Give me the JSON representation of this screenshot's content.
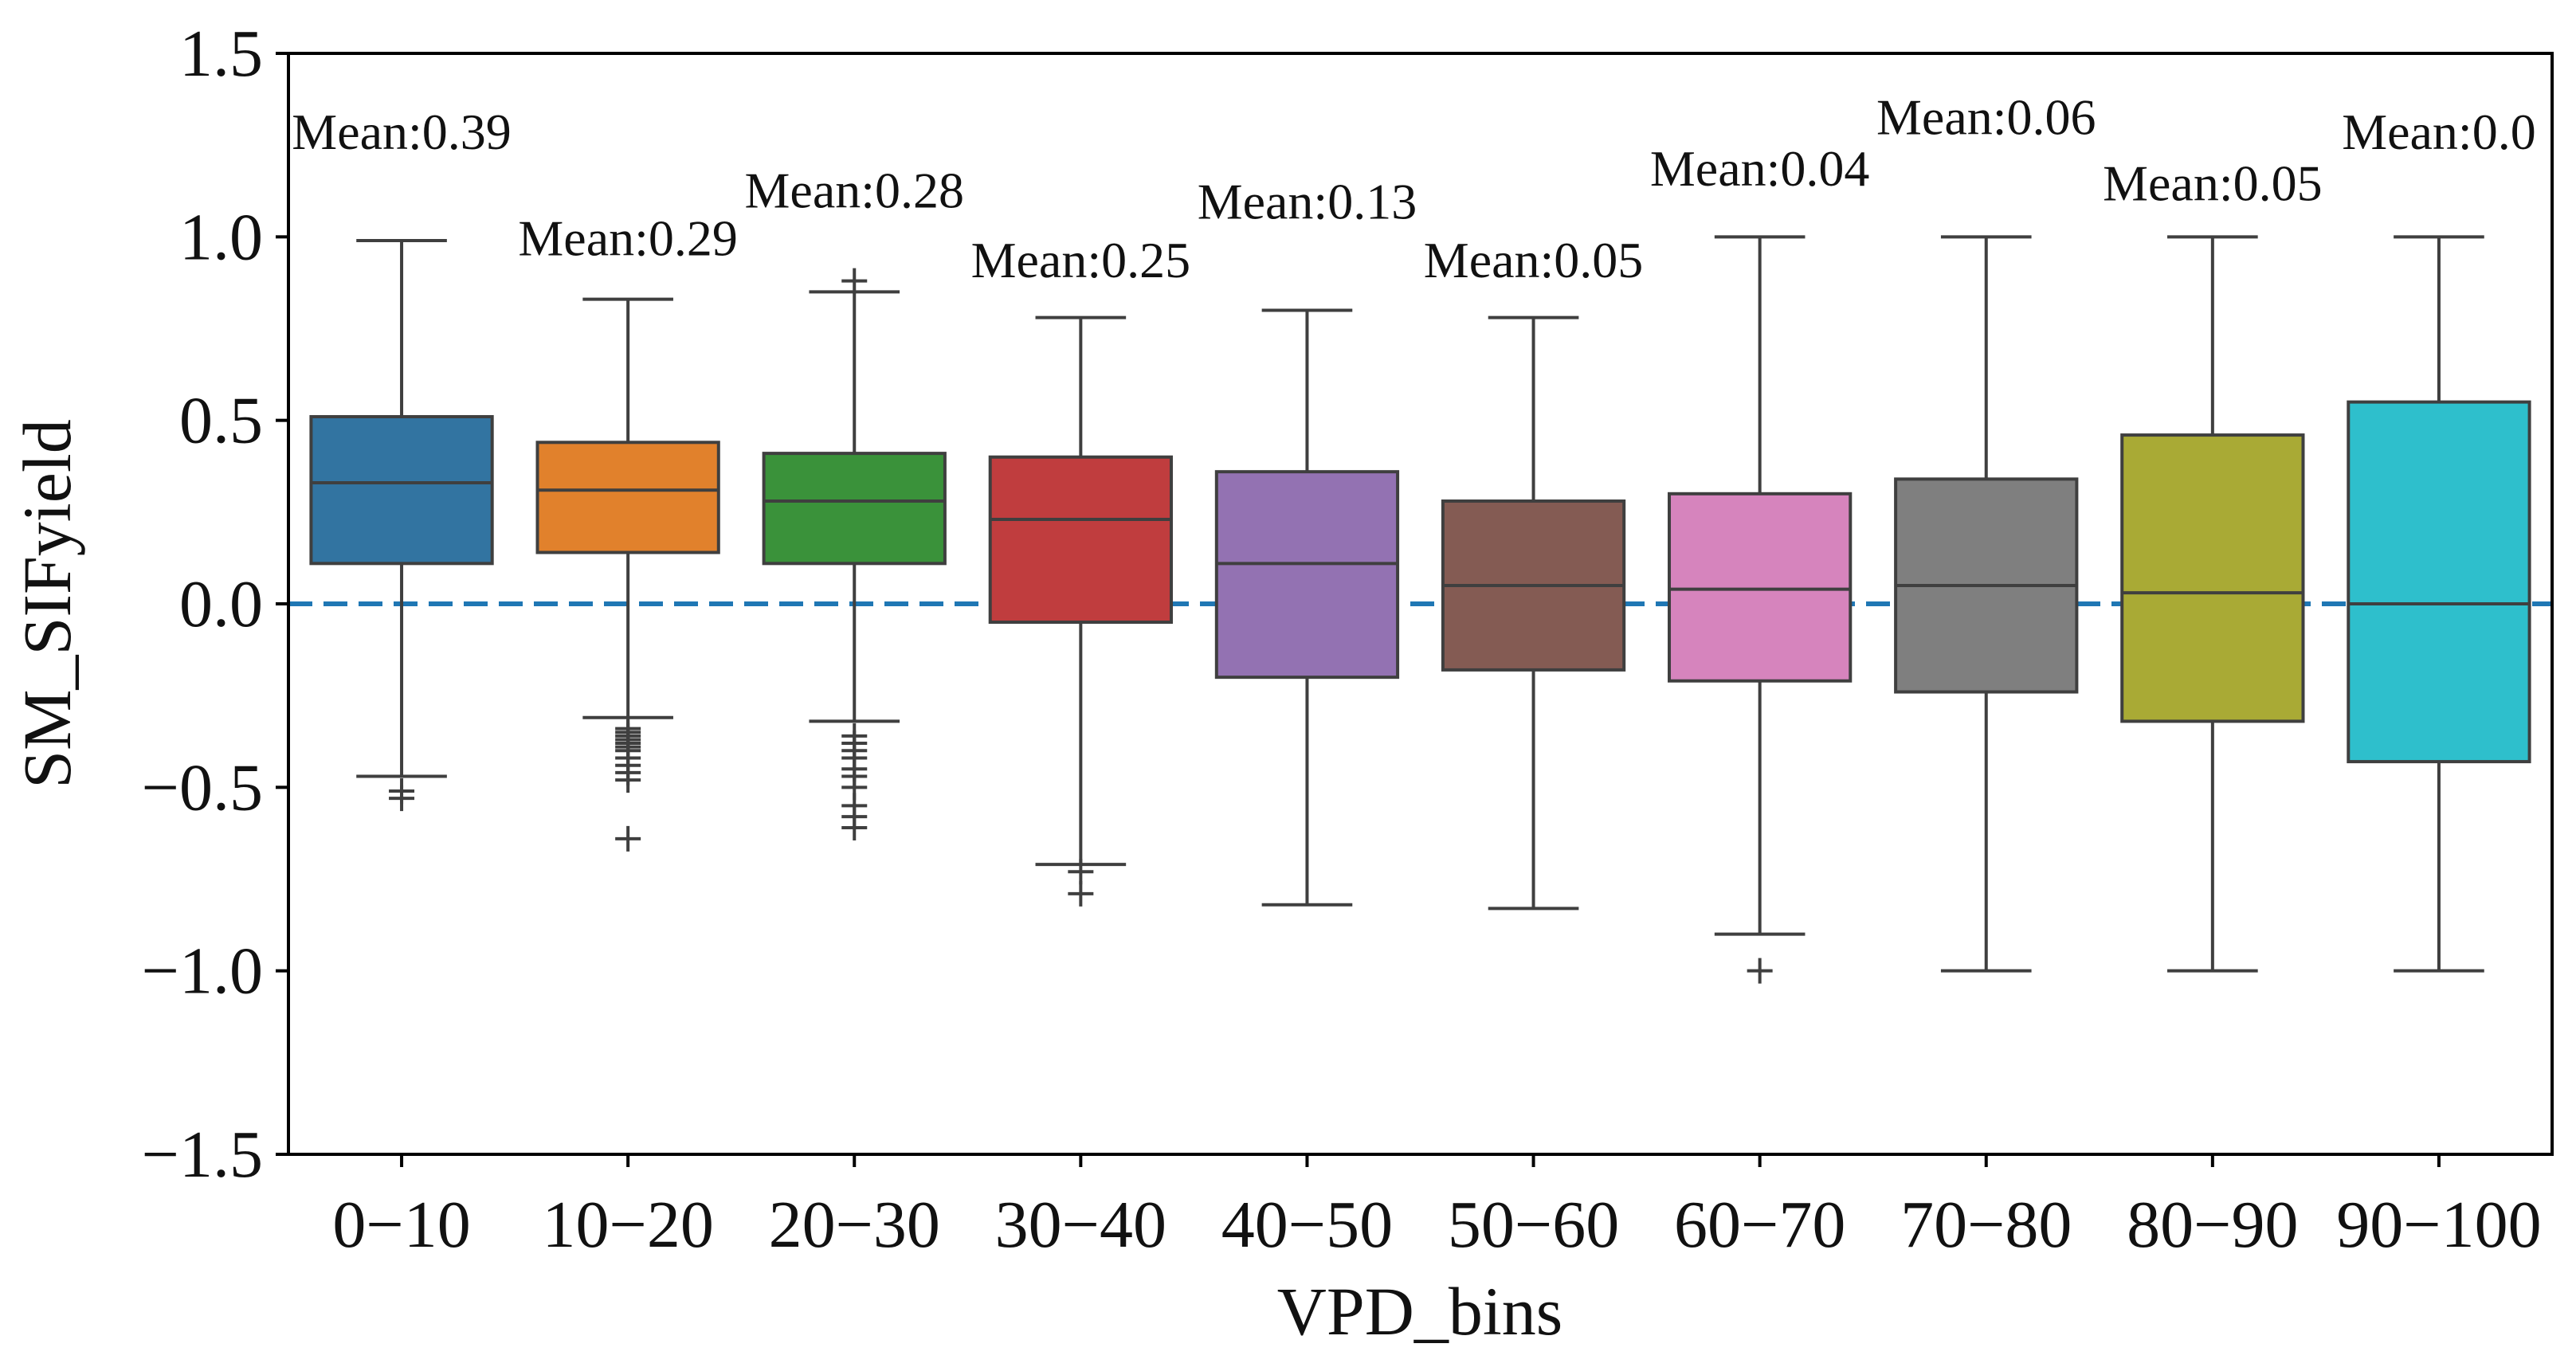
{
  "chart_data": {
    "type": "boxplot",
    "title": "",
    "xlabel": "VPD_bins",
    "ylabel": "SM_SIFyield",
    "ylim": [
      -1.5,
      1.5
    ],
    "yticks": [
      "1.5",
      "1.0",
      "0.5",
      "0.0",
      "−0.5",
      "−1.0",
      "−1.5"
    ],
    "ytick_values": [
      1.5,
      1.0,
      0.5,
      0.0,
      -0.5,
      -1.0,
      -1.5
    ],
    "reference_line": {
      "y": 0.0,
      "style": "dashed",
      "color": "#1f77b4"
    },
    "categories": [
      "0−10",
      "10−20",
      "20−30",
      "30−40",
      "40−50",
      "50−60",
      "60−70",
      "70−80",
      "80−90",
      "90−100"
    ],
    "boxes": [
      {
        "category": "0−10",
        "color": "#3274a1",
        "whisker_low": -0.47,
        "q1": 0.11,
        "median": 0.33,
        "q3": 0.51,
        "whisker_high": 0.99,
        "outliers": [
          -0.51,
          -0.53
        ],
        "mean_label": "Mean:0.39"
      },
      {
        "category": "10−20",
        "color": "#e1812c",
        "whisker_low": -0.31,
        "q1": 0.14,
        "median": 0.31,
        "q3": 0.44,
        "whisker_high": 0.83,
        "outliers": [
          -0.34,
          -0.35,
          -0.36,
          -0.37,
          -0.38,
          -0.39,
          -0.4,
          -0.42,
          -0.44,
          -0.46,
          -0.48,
          -0.64
        ],
        "mean_label": "Mean:0.29"
      },
      {
        "category": "20−30",
        "color": "#3a923a",
        "whisker_low": -0.32,
        "q1": 0.11,
        "median": 0.28,
        "q3": 0.41,
        "whisker_high": 0.85,
        "outliers": [
          0.88,
          -0.36,
          -0.38,
          -0.4,
          -0.42,
          -0.45,
          -0.47,
          -0.5,
          -0.55,
          -0.58,
          -0.61
        ],
        "mean_label": "Mean:0.28"
      },
      {
        "category": "30−40",
        "color": "#c03d3e",
        "whisker_low": -0.71,
        "q1": -0.05,
        "median": 0.23,
        "q3": 0.4,
        "whisker_high": 0.78,
        "outliers": [
          -0.73,
          -0.79
        ],
        "mean_label": "Mean:0.25"
      },
      {
        "category": "40−50",
        "color": "#9372b2",
        "whisker_low": -0.82,
        "q1": -0.2,
        "median": 0.11,
        "q3": 0.36,
        "whisker_high": 0.8,
        "outliers": [],
        "mean_label": "Mean:0.13"
      },
      {
        "category": "50−60",
        "color": "#845b53",
        "whisker_low": -0.83,
        "q1": -0.18,
        "median": 0.05,
        "q3": 0.28,
        "whisker_high": 0.78,
        "outliers": [],
        "mean_label": "Mean:0.05"
      },
      {
        "category": "60−70",
        "color": "#d684bd",
        "whisker_low": -0.9,
        "q1": -0.21,
        "median": 0.04,
        "q3": 0.3,
        "whisker_high": 1.0,
        "outliers": [
          -1.0
        ],
        "mean_label": "Mean:0.04"
      },
      {
        "category": "70−80",
        "color": "#7f7f7f",
        "whisker_low": -1.0,
        "q1": -0.24,
        "median": 0.05,
        "q3": 0.34,
        "whisker_high": 1.0,
        "outliers": [],
        "mean_label": "Mean:0.06"
      },
      {
        "category": "80−90",
        "color": "#a9aa35",
        "whisker_low": -1.0,
        "q1": -0.32,
        "median": 0.03,
        "q3": 0.46,
        "whisker_high": 1.0,
        "outliers": [],
        "mean_label": "Mean:0.05"
      },
      {
        "category": "90−100",
        "color": "#2ebfcc",
        "whisker_low": -1.0,
        "q1": -0.43,
        "median": 0.0,
        "q3": 0.55,
        "whisker_high": 1.0,
        "outliers": [],
        "mean_label": "Mean:0.0"
      }
    ],
    "mean_label_positions": [
      1.24,
      0.95,
      1.08,
      0.89,
      1.05,
      0.89,
      1.14,
      1.28,
      1.1,
      1.24
    ]
  }
}
